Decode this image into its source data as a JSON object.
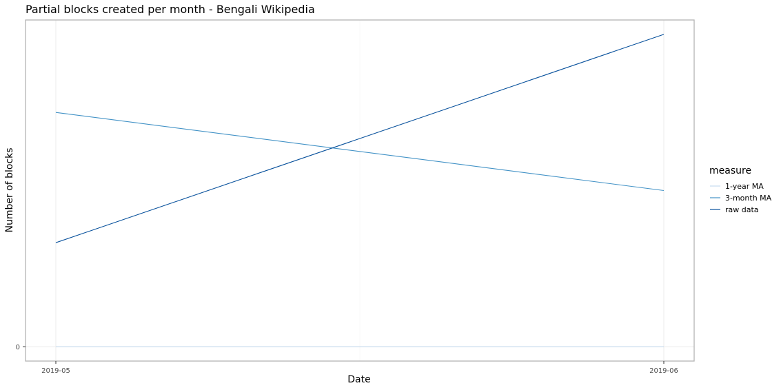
{
  "chart_data": {
    "type": "line",
    "title": "Partial blocks created per month - Bengali Wikipedia",
    "xlabel": "Date",
    "ylabel": "Number of blocks",
    "x": [
      "2019-05",
      "2019-06"
    ],
    "x_tick_labels": [
      "2019-05",
      "2019-06"
    ],
    "y_tick_labels": [
      "0"
    ],
    "ylim": [
      -0.046,
      1.046
    ],
    "grid": true,
    "legend": {
      "title": "measure",
      "position": "right"
    },
    "series": [
      {
        "name": "1-year MA",
        "color": "#c6dbef",
        "values": [
          0,
          0
        ]
      },
      {
        "name": "3-month MA",
        "color": "#4292c6",
        "values": [
          0.75,
          0.5
        ]
      },
      {
        "name": "raw data",
        "color": "#08519c",
        "values": [
          0.333,
          1.0
        ]
      }
    ]
  }
}
